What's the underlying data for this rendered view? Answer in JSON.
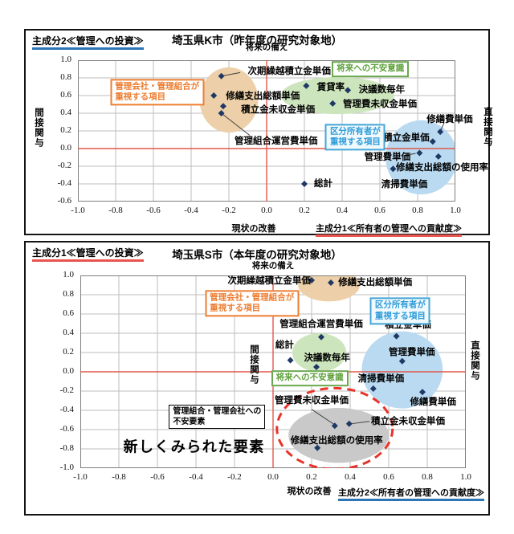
{
  "colors": {
    "marker": "#1f3864",
    "grid": "#bdbdbd",
    "plot_border": "#7f7f7f",
    "zero_line": "#e0584b",
    "pc1_accent": "#e8554e",
    "pc2_accent": "#2e75b6",
    "tan_ellipse": "#edd0a9",
    "green_ellipse": "#cde5bd",
    "blue_ellipse": "#b9daf1",
    "grey_ellipse": "#c9c9c9",
    "red_dashed": "#e8342a",
    "connector": "#404040"
  },
  "chart_data": [
    {
      "type": "scatter",
      "corner_label": "主成分2≪管理への投資≫",
      "corner_accent": "pc2_accent",
      "title": "埼玉県K市（昨年度の研究対象地）",
      "axis_note_top": "将来の備え",
      "x_caption_left": "現状の改善",
      "x_caption_right": "主成分1≪所有者の管理への貢献度≫",
      "x_caption_right_accent": "pc1_accent",
      "ylabel_left": "間接関与",
      "ylabel_right": "直接関与",
      "xlim": [
        -1.0,
        1.0
      ],
      "ylim": [
        -0.6,
        1.0
      ],
      "grid": true,
      "x_ticks": [
        "-1.0",
        "-0.8",
        "-0.6",
        "-0.4",
        "-0.2",
        "0.0",
        "0.2",
        "0.4",
        "0.6",
        "0.8",
        "1.0"
      ],
      "y_ticks": [
        "1.0",
        "0.8",
        "0.6",
        "0.4",
        "0.2",
        "0.0",
        "-0.2",
        "-0.4",
        "-0.6"
      ],
      "points": [
        {
          "label": "次期繰越積立金単価",
          "x": -0.24,
          "y": 0.82,
          "lx": 0.12,
          "ly": 0.88,
          "line": [
            -0.24,
            0.82,
            -0.14,
            0.86
          ]
        },
        {
          "label": "修繕支出総額単価",
          "x": -0.28,
          "y": 0.6,
          "lx": -0.02,
          "ly": 0.6
        },
        {
          "label": "積立金未収金単価",
          "x": -0.23,
          "y": 0.48,
          "lx": 0.06,
          "ly": 0.45
        },
        {
          "label": "管理組合運営費単価",
          "x": -0.24,
          "y": 0.4,
          "lx": 0.05,
          "ly": 0.09,
          "line": [
            -0.24,
            0.4,
            -0.09,
            0.15
          ]
        },
        {
          "label": "賃貸率",
          "x": 0.21,
          "y": 0.71,
          "lx": 0.34,
          "ly": 0.7
        },
        {
          "label": "決議数毎年",
          "x": 0.43,
          "y": 0.66,
          "lx": 0.61,
          "ly": 0.67
        },
        {
          "label": "管理費未収金単価",
          "x": 0.35,
          "y": 0.51,
          "lx": 0.6,
          "ly": 0.51
        },
        {
          "label": "修繕費単価",
          "x": 0.92,
          "y": 0.19,
          "lx": 0.97,
          "ly": 0.34,
          "line": [
            0.92,
            0.19,
            0.94,
            0.29
          ]
        },
        {
          "label": "積立金単価",
          "x": 0.88,
          "y": 0.08,
          "lx": 0.74,
          "ly": 0.13
        },
        {
          "label": "管理費単価",
          "x": 0.81,
          "y": -0.05,
          "lx": 0.64,
          "ly": -0.09,
          "line": [
            0.73,
            -0.08,
            0.79,
            -0.055
          ]
        },
        {
          "label": "",
          "x": 0.91,
          "y": -0.09
        },
        {
          "label": "修繕支出総額の使用率",
          "x": 0.67,
          "y": -0.23,
          "lx": 0.93,
          "ly": -0.21
        },
        {
          "label": "清掃費単価",
          "no_marker": true,
          "x": 0.73,
          "y": -0.4,
          "lx": 0.73,
          "ly": -0.4
        },
        {
          "label": "総計",
          "x": 0.2,
          "y": -0.4,
          "lx": 0.3,
          "ly": -0.39
        }
      ],
      "ellipses": [
        {
          "name": "tan-cluster-ellipse",
          "cx": -0.2,
          "cy": 0.55,
          "rx": 0.155,
          "ry": 0.37,
          "fill": "tan_ellipse"
        },
        {
          "name": "green-cluster-ellipse",
          "cx": 0.375,
          "cy": 0.6,
          "rx": 0.3,
          "ry": 0.21,
          "fill": "green_ellipse"
        },
        {
          "name": "blue-cluster-ellipse",
          "cx": 0.82,
          "cy": -0.1,
          "rx": 0.19,
          "ry": 0.42,
          "fill": "blue_ellipse"
        }
      ],
      "boxes": [
        {
          "style": "orange",
          "name": "managers-priority-callout",
          "cx": -0.58,
          "cy": 0.64,
          "lines": [
            "管理会社・管理組合が",
            "重視する項目"
          ]
        },
        {
          "style": "green",
          "name": "future-anxiety-callout",
          "cx": 0.55,
          "cy": 0.9,
          "lines": [
            "将来への不安意識"
          ]
        },
        {
          "style": "blue",
          "name": "owners-priority-callout",
          "cx": 0.47,
          "cy": 0.13,
          "lines": [
            "区分所有者が",
            "重視する項目"
          ]
        }
      ]
    },
    {
      "type": "scatter",
      "corner_label": "主成分1≪管理への投資≫",
      "corner_accent": "pc1_accent",
      "title": "埼玉県S市（本年度の研究対象地）",
      "axis_note_top": "将来の備え",
      "x_caption_left": "現状の改善",
      "x_caption_right": "主成分2≪所有者の管理への貢献度≫",
      "x_caption_right_accent": "pc2_accent",
      "ylabel_left": "間接関与",
      "ylabel_right": "直接関与",
      "xlim": [
        -1.0,
        1.0
      ],
      "ylim": [
        -1.0,
        1.0
      ],
      "grid": true,
      "x_ticks": [
        "-1.0",
        "-0.8",
        "-0.6",
        "-0.4",
        "-0.2",
        "0.0",
        "0.2",
        "0.4",
        "0.6",
        "0.8",
        "1.0"
      ],
      "y_ticks": [
        "1.0",
        "0.8",
        "0.6",
        "0.4",
        "0.2",
        "0.0",
        "-0.2",
        "-0.4",
        "-0.6",
        "-0.8",
        "-1.0"
      ],
      "points": [
        {
          "label": "次期繰越積立金単価",
          "x": 0.2,
          "y": 0.95,
          "lx": -0.02,
          "ly": 0.95
        },
        {
          "label": "修繕支出総額単価",
          "x": 0.3,
          "y": 0.925,
          "lx": 0.53,
          "ly": 0.93
        },
        {
          "label": "管理組合運営費単価",
          "x": 0.25,
          "y": 0.36,
          "lx": 0.25,
          "ly": 0.5
        },
        {
          "label": "積立金単価",
          "x": 0.64,
          "y": 0.37,
          "lx": 0.7,
          "ly": 0.49
        },
        {
          "label": "総計",
          "x": 0.09,
          "y": 0.12,
          "lx": 0.06,
          "ly": 0.28
        },
        {
          "label": "決議数毎年",
          "x": 0.225,
          "y": 0.05,
          "lx": 0.28,
          "ly": 0.15
        },
        {
          "label": "管理費単価",
          "x": 0.67,
          "y": 0.11,
          "lx": 0.72,
          "ly": 0.21
        },
        {
          "label": "清掃費単価",
          "x": 0.52,
          "y": -0.175,
          "lx": 0.56,
          "ly": -0.07
        },
        {
          "label": "修繕費単価",
          "x": 0.775,
          "y": -0.21,
          "lx": 0.83,
          "ly": -0.31
        },
        {
          "label": "管理費未収金単価",
          "x": 0.32,
          "y": -0.56,
          "lx": 0.2,
          "ly": -0.29,
          "line": [
            0.2,
            -0.39,
            0.32,
            -0.55
          ]
        },
        {
          "label": "積立金未収金単価",
          "x": 0.395,
          "y": -0.54,
          "lx": 0.7,
          "ly": -0.51,
          "line": [
            0.5,
            -0.515,
            0.41,
            -0.538
          ]
        },
        {
          "label": "修繕支出総額の使用率",
          "x": 0.23,
          "y": -0.79,
          "lx": 0.33,
          "ly": -0.71
        }
      ],
      "ellipses": [
        {
          "name": "tan-cluster-ellipse",
          "cx": 0.29,
          "cy": 0.9,
          "rx": 0.16,
          "ry": 0.17,
          "fill": "tan_ellipse"
        },
        {
          "name": "green-cluster-ellipse",
          "cx": 0.24,
          "cy": 0.2,
          "rx": 0.14,
          "ry": 0.2,
          "fill": "green_ellipse"
        },
        {
          "name": "blue-cluster-ellipse",
          "cx": 0.67,
          "cy": 0.02,
          "rx": 0.21,
          "ry": 0.4,
          "fill": "blue_ellipse"
        },
        {
          "name": "grey-cluster-ellipse",
          "cx": 0.34,
          "cy": -0.66,
          "rx": 0.26,
          "ry": 0.285,
          "fill": "grey_ellipse"
        },
        {
          "name": "new-elements-dashed-ellipse",
          "cx": 0.32,
          "cy": -0.59,
          "rx": 0.3,
          "ry": 0.42,
          "stroke": "red_dashed",
          "dashed": true
        }
      ],
      "boxes": [
        {
          "style": "orange",
          "name": "managers-priority-callout",
          "cx": -0.11,
          "cy": 0.71,
          "lines": [
            "管理会社・管理組合が",
            "重視する項目"
          ]
        },
        {
          "style": "blue",
          "name": "owners-priority-callout",
          "cx": 0.66,
          "cy": 0.63,
          "lines": [
            "区分所有者が",
            "重視する項目"
          ]
        },
        {
          "style": "green",
          "name": "future-anxiety-callout",
          "cx": 0.19,
          "cy": -0.07,
          "lines": [
            "将来への不安意識"
          ]
        },
        {
          "style": "black",
          "name": "anxiety-factor-callout",
          "cx": -0.29,
          "cy": -0.47,
          "lines": [
            "管理組合・管理会社への",
            "不安要素"
          ]
        },
        {
          "style": "headline",
          "name": "new-elements-headline",
          "cx": -0.41,
          "cy": -0.78,
          "lines": [
            "新しくみられた要素"
          ]
        }
      ]
    }
  ]
}
